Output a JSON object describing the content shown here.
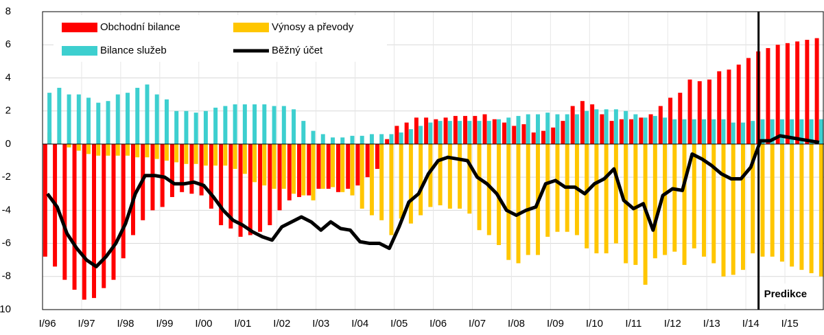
{
  "chart_data": {
    "type": "bar",
    "categories": [
      "I/96",
      null,
      null,
      null,
      "I/97",
      null,
      null,
      null,
      "I/98",
      null,
      null,
      null,
      "I/99",
      null,
      null,
      null,
      "I/00",
      null,
      null,
      null,
      "I/01",
      null,
      null,
      null,
      "I/02",
      null,
      null,
      null,
      "I/03",
      null,
      null,
      null,
      "I/04",
      null,
      null,
      null,
      "I/05",
      null,
      null,
      null,
      "I/06",
      null,
      null,
      null,
      "I/07",
      null,
      null,
      null,
      "I/08",
      null,
      null,
      null,
      "I/09",
      null,
      null,
      null,
      "I/10",
      null,
      null,
      null,
      "I/11",
      null,
      null,
      null,
      "I/12",
      null,
      null,
      null,
      "I/13",
      null,
      null,
      null,
      "I/14",
      null,
      null,
      null,
      "I/15",
      null,
      null,
      null
    ],
    "series": [
      {
        "name": "Obchodní bilance",
        "color": "#ff0000",
        "values": [
          -6.8,
          -7.4,
          -8.2,
          -8.8,
          -9.4,
          -9.3,
          -8.7,
          -8.2,
          -6.9,
          -5.5,
          -4.6,
          -4.0,
          -3.8,
          -3.2,
          -2.9,
          -3.0,
          -3.1,
          -3.9,
          -4.9,
          -5.1,
          -5.6,
          -5.5,
          -5.3,
          -4.9,
          -4.0,
          -3.4,
          -3.2,
          -3.1,
          -2.7,
          -2.7,
          -2.9,
          -2.7,
          -2.5,
          -2.0,
          -1.5,
          0.3,
          1.1,
          1.3,
          1.6,
          1.6,
          1.5,
          1.6,
          1.7,
          1.7,
          1.7,
          1.8,
          1.5,
          1.3,
          1.1,
          1.2,
          0.7,
          0.8,
          1.0,
          1.4,
          2.3,
          2.6,
          2.4,
          1.8,
          1.4,
          1.5,
          1.5,
          1.6,
          1.8,
          2.3,
          2.8,
          3.1,
          3.9,
          3.8,
          3.9,
          4.4,
          4.5,
          4.8,
          5.2,
          5.6,
          5.8,
          6.0,
          6.1,
          6.2,
          6.3,
          6.4
        ]
      },
      {
        "name": "Výnosy a převody",
        "color": "#ffc600",
        "values": [
          0.7,
          0.2,
          -0.2,
          -0.4,
          -0.6,
          -0.7,
          -0.7,
          -0.7,
          -0.7,
          -0.8,
          -0.8,
          -0.9,
          -1.0,
          -1.1,
          -1.2,
          -1.2,
          -1.3,
          -1.3,
          -1.3,
          -1.5,
          -1.8,
          -2.3,
          -2.5,
          -2.7,
          -2.7,
          -3.0,
          -3.1,
          -3.4,
          -2.7,
          -2.6,
          -2.9,
          -3.1,
          -3.9,
          -4.3,
          -4.6,
          -5.5,
          -4.5,
          -4.8,
          -4.3,
          -3.8,
          -3.7,
          -3.9,
          -3.9,
          -4.2,
          -5.2,
          -5.5,
          -6.1,
          -7.0,
          -7.2,
          -6.7,
          -6.7,
          -5.6,
          -5.3,
          -5.3,
          -5.5,
          -6.3,
          -6.6,
          -6.6,
          -6.0,
          -7.2,
          -7.3,
          -8.5,
          -6.9,
          -6.7,
          -6.5,
          -7.3,
          -6.3,
          -6.8,
          -7.2,
          -8.0,
          -7.9,
          -7.6,
          -6.6,
          -6.8,
          -6.8,
          -7.1,
          -7.4,
          -7.6,
          -7.8,
          -8.0
        ]
      },
      {
        "name": "Bilance služeb",
        "color": "#3dcfcf",
        "values": [
          3.1,
          3.4,
          3.0,
          3.0,
          2.8,
          2.5,
          2.6,
          3.0,
          3.1,
          3.4,
          3.6,
          3.0,
          2.7,
          2.0,
          2.0,
          1.9,
          2.0,
          2.2,
          2.3,
          2.4,
          2.4,
          2.4,
          2.4,
          2.3,
          2.3,
          2.1,
          1.4,
          0.8,
          0.6,
          0.4,
          0.4,
          0.5,
          0.5,
          0.6,
          0.6,
          0.6,
          0.7,
          0.9,
          1.1,
          1.3,
          1.4,
          1.4,
          1.4,
          1.4,
          1.4,
          1.4,
          1.5,
          1.6,
          1.7,
          1.8,
          1.8,
          1.9,
          1.8,
          1.8,
          1.8,
          2.0,
          2.1,
          2.1,
          2.1,
          2.0,
          1.8,
          1.6,
          1.7,
          1.6,
          1.5,
          1.5,
          1.5,
          1.5,
          1.5,
          1.5,
          1.3,
          1.3,
          1.4,
          1.5,
          1.5,
          1.5,
          1.5,
          1.5,
          1.5,
          1.5
        ]
      },
      {
        "name": "Běžný účet",
        "color": "#000000",
        "type": "line",
        "values": [
          -3.0,
          -3.8,
          -5.4,
          -6.3,
          -7.0,
          -7.4,
          -6.8,
          -6.0,
          -4.8,
          -3.0,
          -1.9,
          -1.9,
          -2.0,
          -2.4,
          -2.4,
          -2.3,
          -2.5,
          -3.2,
          -4.0,
          -4.6,
          -4.9,
          -5.3,
          -5.6,
          -5.8,
          -5.0,
          -4.7,
          -4.4,
          -4.7,
          -5.2,
          -4.7,
          -5.1,
          -5.2,
          -5.9,
          -6.0,
          -6.0,
          -6.3,
          -5.0,
          -3.5,
          -3.0,
          -1.8,
          -1.0,
          -0.8,
          -0.9,
          -1.0,
          -2.0,
          -2.4,
          -3.0,
          -4.0,
          -4.3,
          -4.0,
          -3.8,
          -2.4,
          -2.2,
          -2.6,
          -2.6,
          -3.0,
          -2.4,
          -2.1,
          -1.5,
          -3.4,
          -3.9,
          -3.6,
          -5.2,
          -3.1,
          -2.7,
          -2.8,
          -0.6,
          -0.9,
          -1.3,
          -1.8,
          -2.1,
          -2.1,
          -1.4,
          0.2,
          0.2,
          0.5,
          0.4,
          0.3,
          0.2,
          0.1
        ]
      }
    ],
    "ylim": [
      -10,
      8
    ],
    "yticks": [
      -10,
      -8,
      -6,
      -4,
      -2,
      0,
      2,
      4,
      6,
      8
    ],
    "grid": true,
    "annotation": "Predikce"
  }
}
